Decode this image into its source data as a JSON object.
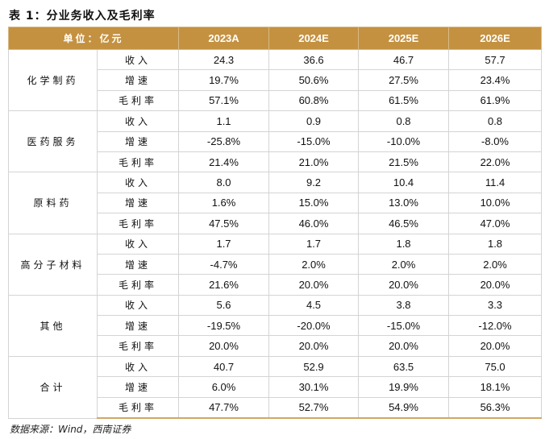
{
  "caption": "表 1：分业务收入及毛利率",
  "header": {
    "unit": "单位：亿元",
    "years": [
      "2023A",
      "2024E",
      "2025E",
      "2026E"
    ]
  },
  "groups": [
    {
      "name": "化学制药",
      "rows": [
        {
          "metric": "收入",
          "values": [
            "24.3",
            "36.6",
            "46.7",
            "57.7"
          ]
        },
        {
          "metric": "增速",
          "values": [
            "19.7%",
            "50.6%",
            "27.5%",
            "23.4%"
          ]
        },
        {
          "metric": "毛利率",
          "values": [
            "57.1%",
            "60.8%",
            "61.5%",
            "61.9%"
          ]
        }
      ]
    },
    {
      "name": "医药服务",
      "rows": [
        {
          "metric": "收入",
          "values": [
            "1.1",
            "0.9",
            "0.8",
            "0.8"
          ]
        },
        {
          "metric": "增速",
          "values": [
            "-25.8%",
            "-15.0%",
            "-10.0%",
            "-8.0%"
          ]
        },
        {
          "metric": "毛利率",
          "values": [
            "21.4%",
            "21.0%",
            "21.5%",
            "22.0%"
          ]
        }
      ]
    },
    {
      "name": "原料药",
      "rows": [
        {
          "metric": "收入",
          "values": [
            "8.0",
            "9.2",
            "10.4",
            "11.4"
          ]
        },
        {
          "metric": "增速",
          "values": [
            "1.6%",
            "15.0%",
            "13.0%",
            "10.0%"
          ]
        },
        {
          "metric": "毛利率",
          "values": [
            "47.5%",
            "46.0%",
            "46.5%",
            "47.0%"
          ]
        }
      ]
    },
    {
      "name": "高分子材料",
      "rows": [
        {
          "metric": "收入",
          "values": [
            "1.7",
            "1.7",
            "1.8",
            "1.8"
          ]
        },
        {
          "metric": "增速",
          "values": [
            "-4.7%",
            "2.0%",
            "2.0%",
            "2.0%"
          ]
        },
        {
          "metric": "毛利率",
          "values": [
            "21.6%",
            "20.0%",
            "20.0%",
            "20.0%"
          ]
        }
      ]
    },
    {
      "name": "其他",
      "rows": [
        {
          "metric": "收入",
          "values": [
            "5.6",
            "4.5",
            "3.8",
            "3.3"
          ]
        },
        {
          "metric": "增速",
          "values": [
            "-19.5%",
            "-20.0%",
            "-15.0%",
            "-12.0%"
          ]
        },
        {
          "metric": "毛利率",
          "values": [
            "20.0%",
            "20.0%",
            "20.0%",
            "20.0%"
          ]
        }
      ]
    },
    {
      "name": "合计",
      "rows": [
        {
          "metric": "收入",
          "values": [
            "40.7",
            "52.9",
            "63.5",
            "75.0"
          ]
        },
        {
          "metric": "增速",
          "values": [
            "6.0%",
            "30.1%",
            "19.9%",
            "18.1%"
          ]
        },
        {
          "metric": "毛利率",
          "values": [
            "47.7%",
            "52.7%",
            "54.9%",
            "56.3%"
          ]
        }
      ]
    }
  ],
  "source": "数据来源：Wind，西南证券",
  "colors": {
    "header_bg": "#C49140",
    "bottom_rule": "#D1A863"
  }
}
